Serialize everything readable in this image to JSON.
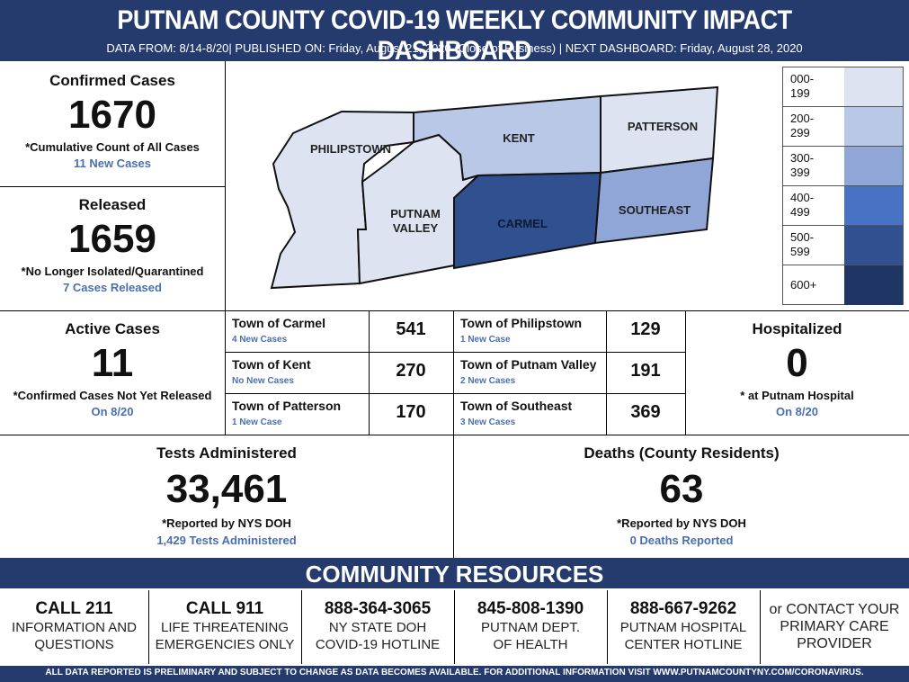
{
  "header": {
    "title": "PUTNAM COUNTY COVID-19 WEEKLY COMMUNITY IMPACT DASHBOARD",
    "subtitle": "DATA FROM: 8/14-8/20|  PUBLISHED ON:  Friday, August 21, 2020 (Close of Business)  |  NEXT DASHBOARD:  Friday, August 28, 2020"
  },
  "confirmed": {
    "label": "Confirmed Cases",
    "value": "1670",
    "note": "*Cumulative Count of All Cases",
    "detail": "11 New Cases"
  },
  "released": {
    "label": "Released",
    "value": "1659",
    "note": "*No Longer Isolated/Quarantined",
    "detail": "7 Cases Released"
  },
  "active": {
    "label": "Active Cases",
    "value": "11",
    "note": "*Confirmed Cases Not Yet Released",
    "detail": "On 8/20"
  },
  "hospitalized": {
    "label": "Hospitalized",
    "value": "0",
    "note": "* at Putnam Hospital",
    "detail": "On 8/20"
  },
  "tests": {
    "label": "Tests Administered",
    "value": "33,461",
    "note": "*Reported by NYS DOH",
    "detail": "1,429 Tests Administered"
  },
  "deaths": {
    "label": "Deaths (County Residents)",
    "value": "63",
    "note": "*Reported by NYS DOH",
    "detail": "0 Deaths Reported"
  },
  "map": {
    "towns": [
      {
        "name": "PHILIPSTOWN",
        "color": "#dde3f1"
      },
      {
        "name": "KENT",
        "color": "#b9c8e6"
      },
      {
        "name": "PATTERSON",
        "color": "#dde3f1"
      },
      {
        "name": "PUTNAM",
        "name2": "VALLEY",
        "color": "#dde3f1"
      },
      {
        "name": "CARMEL",
        "color": "#30508f"
      },
      {
        "name": "SOUTHEAST",
        "color": "#8fa6d7"
      }
    ]
  },
  "legend": [
    {
      "range": "000-",
      "range2": "199",
      "color": "#dde3f1"
    },
    {
      "range": "200-",
      "range2": "299",
      "color": "#b9c8e6"
    },
    {
      "range": "300-",
      "range2": "399",
      "color": "#8fa6d7"
    },
    {
      "range": "400-",
      "range2": "499",
      "color": "#4873c4"
    },
    {
      "range": "500-",
      "range2": "599",
      "color": "#30508f"
    },
    {
      "range": "600+",
      "range2": "",
      "color": "#1f3563"
    }
  ],
  "towns_table": [
    {
      "name": "Town of Carmel",
      "new": "4 New Cases",
      "value": "541"
    },
    {
      "name": "Town of Kent",
      "new": "No New Cases",
      "value": "270"
    },
    {
      "name": "Town of Patterson",
      "new": "1 New Case",
      "value": "170"
    },
    {
      "name": "Town of Philipstown",
      "new": "1 New Case",
      "value": "129"
    },
    {
      "name": "Town of Putnam Valley",
      "new": "2 New Cases",
      "value": "191"
    },
    {
      "name": "Town of Southeast",
      "new": "3 New Cases",
      "value": "369"
    }
  ],
  "resources": {
    "title": "COMMUNITY RESOURCES",
    "items": [
      {
        "head": "CALL 211",
        "l1": "INFORMATION AND",
        "l2": "QUESTIONS",
        "l3": ""
      },
      {
        "head": "CALL 911",
        "l1": "LIFE THREATENING",
        "l2": "EMERGENCIES ONLY",
        "l3": ""
      },
      {
        "head": "888-364-3065",
        "l1": "NY STATE DOH",
        "l2": "COVID-19 HOTLINE",
        "l3": ""
      },
      {
        "head": "845-808-1390",
        "l1": "PUTNAM DEPT.",
        "l2": "OF HEALTH",
        "l3": ""
      },
      {
        "head": "888-667-9262",
        "l1": "PUTNAM HOSPITAL",
        "l2": "CENTER HOTLINE",
        "l3": ""
      },
      {
        "head": "",
        "l1": "or CONTACT YOUR",
        "l2": "PRIMARY CARE",
        "l3": "PROVIDER"
      }
    ]
  },
  "footer": "ALL DATA REPORTED IS PRELIMINARY AND SUBJECT TO CHANGE AS DATA BECOMES AVAILABLE. FOR ADDITIONAL INFORMATION VISIT WWW.PUTNAMCOUNTYNY.COM/CORONAVIRUS."
}
